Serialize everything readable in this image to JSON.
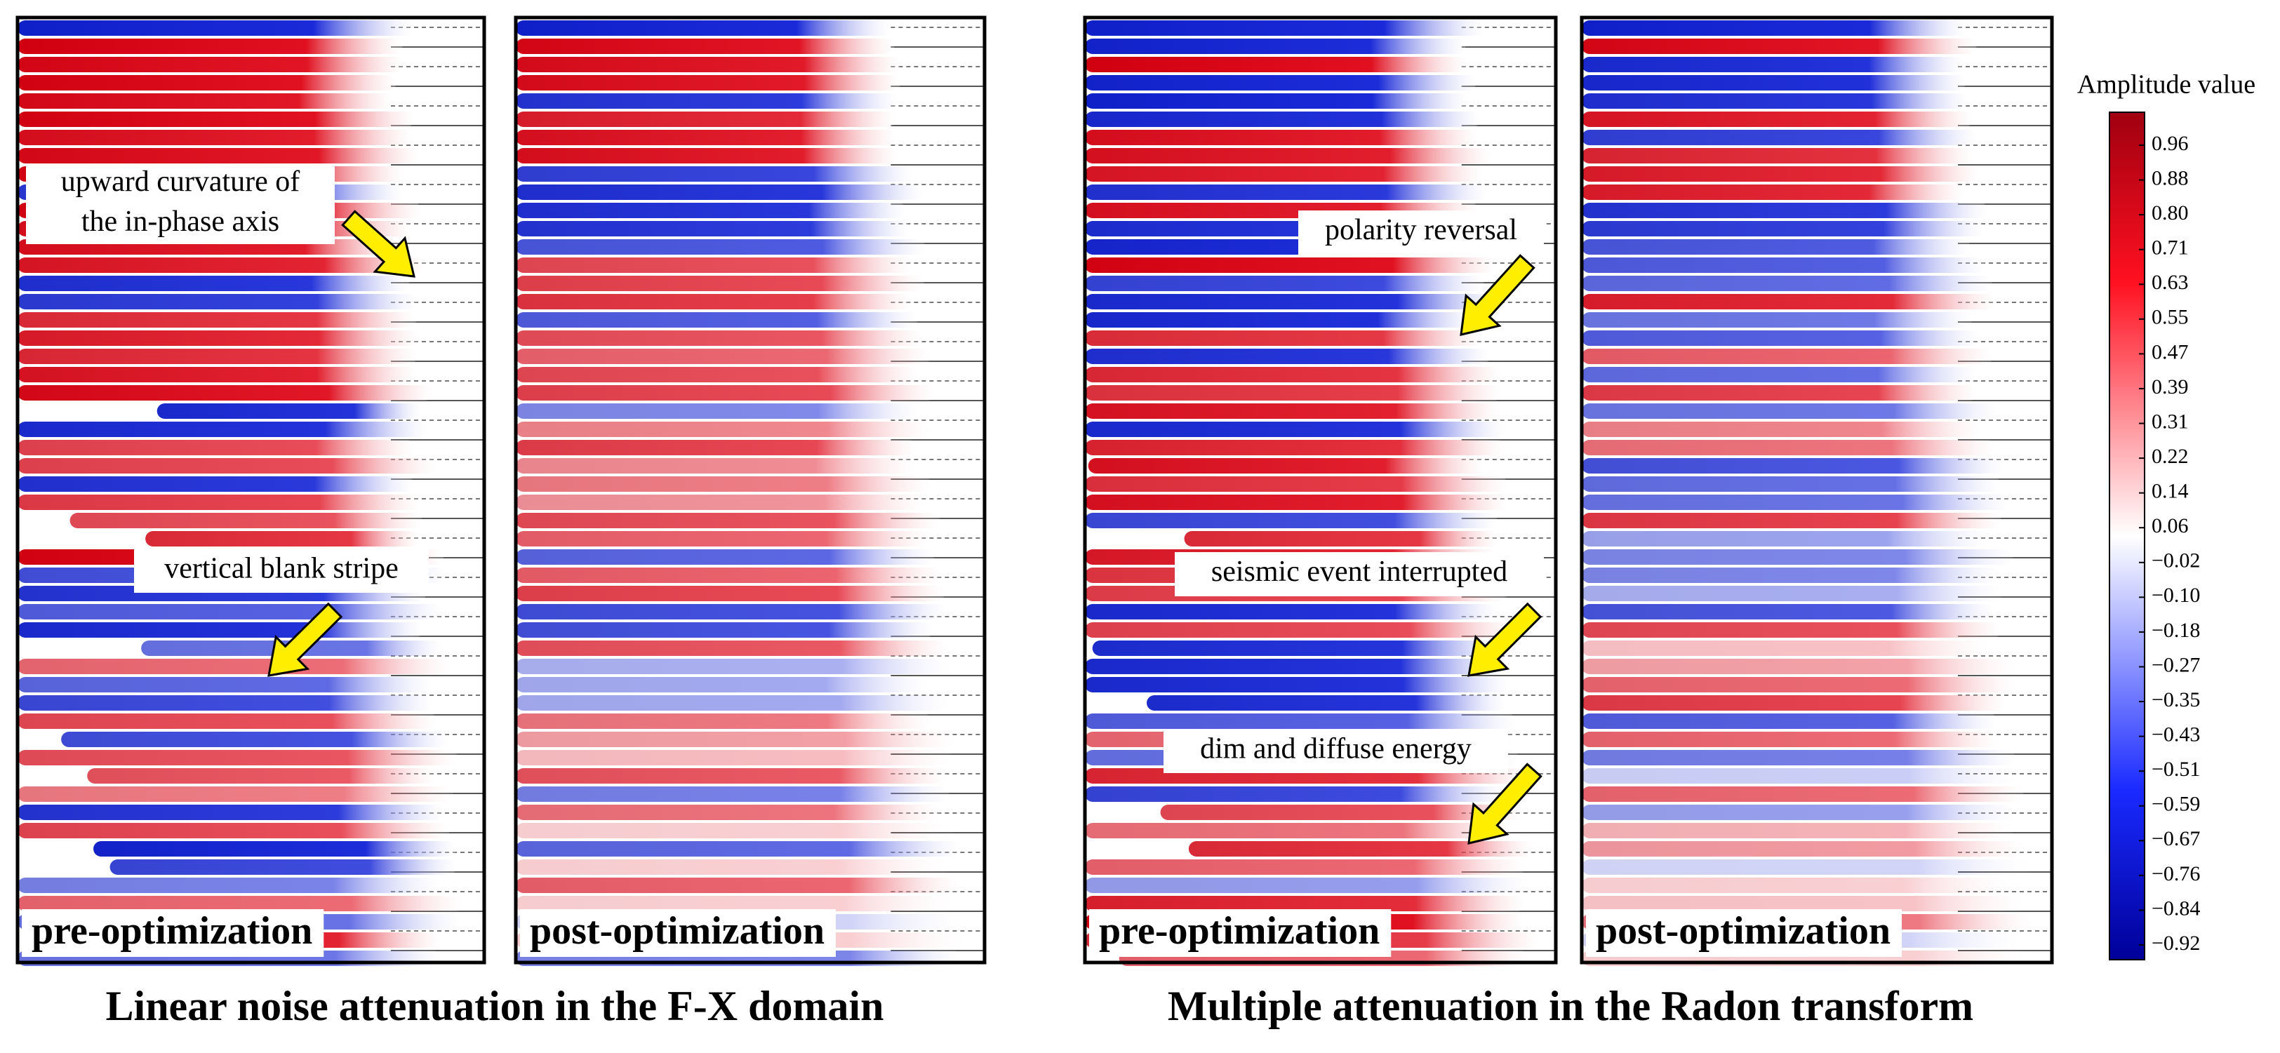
{
  "panels": [
    {
      "label": "pre-optimization"
    },
    {
      "label": "post-optimization"
    },
    {
      "label": "pre-optimization"
    },
    {
      "label": "post-optimization"
    }
  ],
  "annotations": [
    {
      "lines": [
        "upward curvature of",
        "the in-phase axis"
      ]
    },
    {
      "lines": [
        "vertical blank stripe"
      ]
    },
    {
      "lines": [
        "polarity reversal"
      ]
    },
    {
      "lines": [
        "seismic event interrupted"
      ]
    },
    {
      "lines": [
        "dim and diffuse energy"
      ]
    }
  ],
  "captions": [
    "Linear noise attenuation in the F-X domain",
    "Multiple attenuation in the Radon transform"
  ],
  "colorbar": {
    "title": "Amplitude value",
    "ticks": [
      "0.96",
      "0.88",
      "0.80",
      "0.71",
      "0.63",
      "0.55",
      "0.47",
      "0.39",
      "0.31",
      "0.22",
      "0.14",
      "0.06",
      "−0.02",
      "−0.10",
      "−0.18",
      "−0.27",
      "−0.35",
      "−0.43",
      "−0.51",
      "−0.59",
      "−0.67",
      "−0.76",
      "−0.84",
      "−0.92"
    ]
  }
}
